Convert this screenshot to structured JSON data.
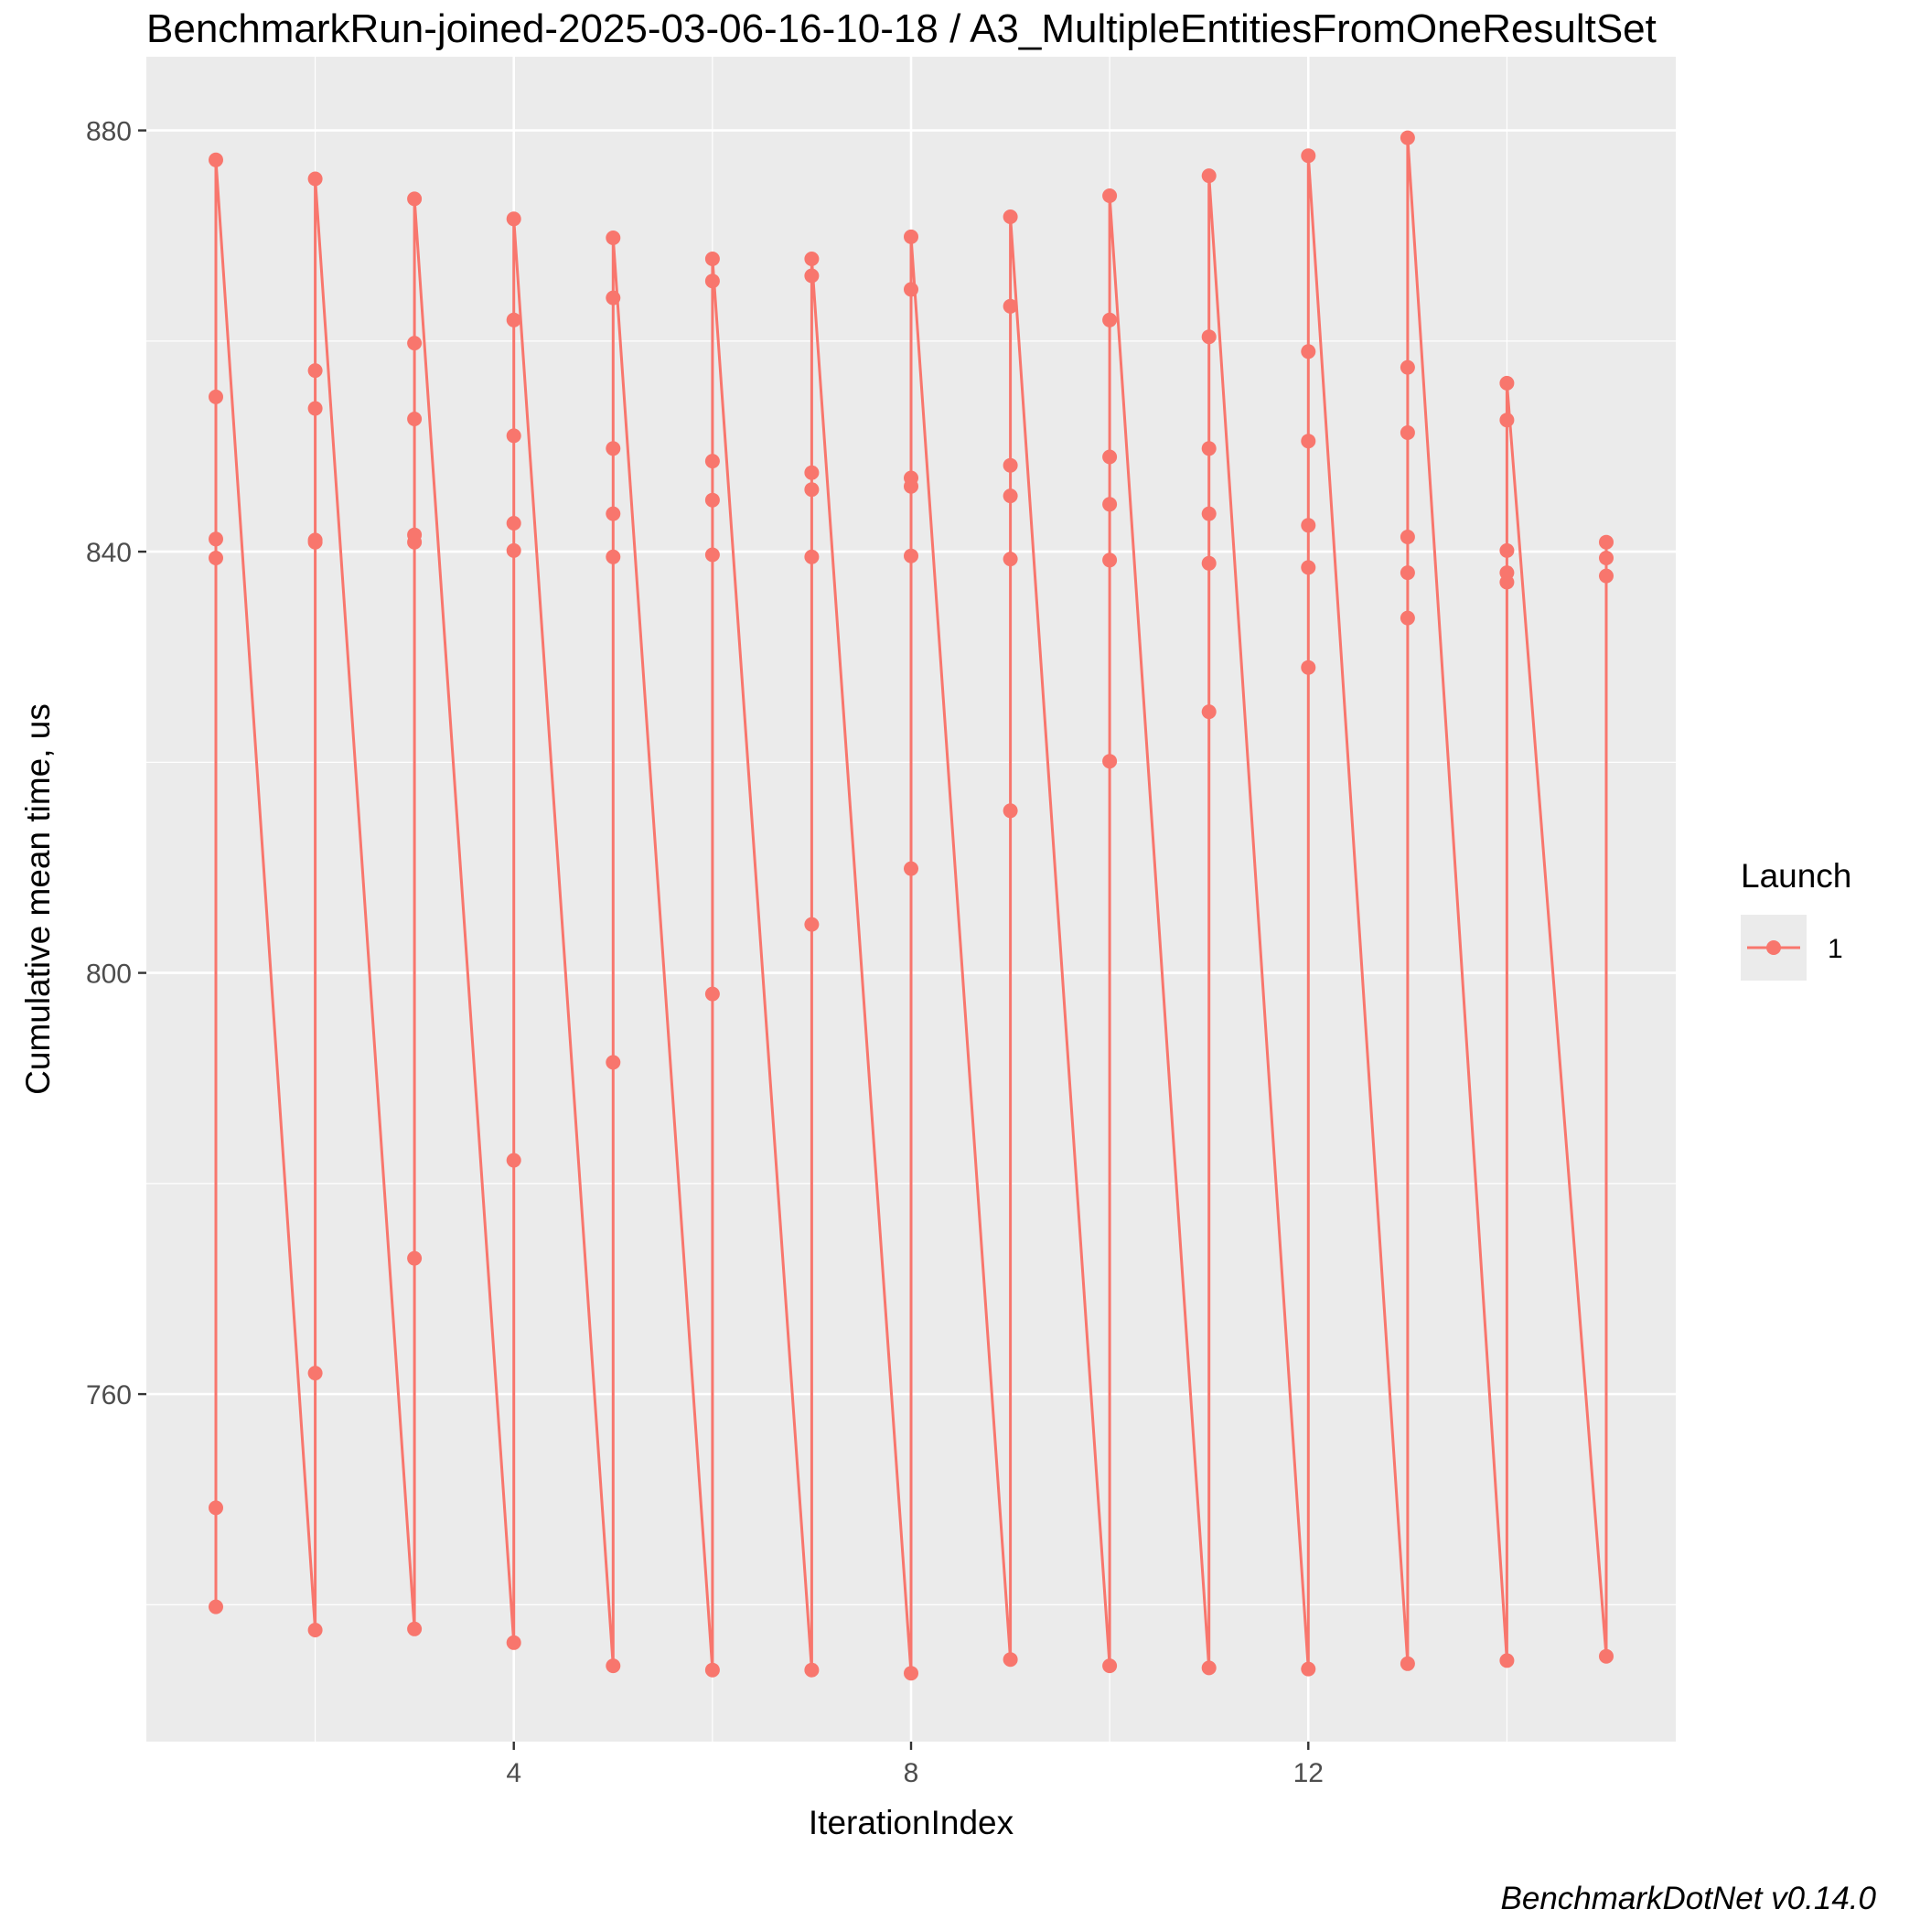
{
  "chart_data": {
    "type": "line",
    "title": "BenchmarkRun-joined-2025-03-06-16-10-18 / A3_MultipleEntitiesFromOneResultSet",
    "xlabel": "IterationIndex",
    "ylabel": "Cumulative mean time, us",
    "caption": "BenchmarkDotNet v0.14.0",
    "xlim": [
      0.3,
      15.7
    ],
    "ylim": [
      727,
      887
    ],
    "x_ticks": [
      4,
      8,
      12
    ],
    "x_tick_labels": [
      "4",
      "8",
      "12"
    ],
    "y_ticks": [
      760,
      800,
      840,
      880
    ],
    "y_tick_labels": [
      "760",
      "800",
      "840",
      "880"
    ],
    "grid": true,
    "legend": {
      "title": "Launch",
      "position": "right",
      "entries": [
        "1"
      ]
    },
    "series_color": "#F8766D",
    "series": [
      {
        "name": "1",
        "points": [
          [
            1,
            739.8
          ],
          [
            1,
            749.2
          ],
          [
            1,
            839.4
          ],
          [
            1,
            841.2
          ],
          [
            1,
            854.7
          ],
          [
            1,
            877.2
          ],
          [
            2,
            737.6
          ],
          [
            2,
            762.0
          ],
          [
            2,
            840.9
          ],
          [
            2,
            841.1
          ],
          [
            2,
            853.6
          ],
          [
            2,
            857.2
          ],
          [
            2,
            875.4
          ],
          [
            3,
            737.7
          ],
          [
            3,
            772.9
          ],
          [
            3,
            840.9
          ],
          [
            3,
            841.6
          ],
          [
            3,
            852.6
          ],
          [
            3,
            859.8
          ],
          [
            3,
            873.5
          ],
          [
            4,
            736.4
          ],
          [
            4,
            782.2
          ],
          [
            4,
            840.1
          ],
          [
            4,
            842.7
          ],
          [
            4,
            851.0
          ],
          [
            4,
            862.0
          ],
          [
            4,
            871.6
          ],
          [
            5,
            734.2
          ],
          [
            5,
            791.5
          ],
          [
            5,
            839.5
          ],
          [
            5,
            843.6
          ],
          [
            5,
            849.8
          ],
          [
            5,
            864.1
          ],
          [
            5,
            869.8
          ],
          [
            6,
            733.8
          ],
          [
            6,
            798.0
          ],
          [
            6,
            839.7
          ],
          [
            6,
            844.9
          ],
          [
            6,
            848.6
          ],
          [
            6,
            865.7
          ],
          [
            6,
            867.8
          ],
          [
            7,
            733.8
          ],
          [
            7,
            804.6
          ],
          [
            7,
            839.5
          ],
          [
            7,
            845.9
          ],
          [
            7,
            847.5
          ],
          [
            7,
            866.2
          ],
          [
            7,
            867.8
          ],
          [
            8,
            733.5
          ],
          [
            8,
            809.9
          ],
          [
            8,
            839.6
          ],
          [
            8,
            846.2
          ],
          [
            8,
            847.0
          ],
          [
            8,
            864.9
          ],
          [
            8,
            869.9
          ]
        ]
      }
    ],
    "points_continued": [
      [
        9,
        734.8
      ],
      [
        9,
        815.4
      ],
      [
        9,
        839.3
      ],
      [
        9,
        845.3
      ],
      [
        9,
        848.2
      ],
      [
        9,
        863.3
      ],
      [
        9,
        871.8
      ],
      [
        10,
        734.2
      ],
      [
        10,
        820.1
      ],
      [
        10,
        839.2
      ],
      [
        10,
        844.5
      ],
      [
        10,
        849.0
      ],
      [
        10,
        862.0
      ],
      [
        10,
        873.8
      ],
      [
        11,
        734.0
      ],
      [
        11,
        824.8
      ],
      [
        11,
        838.9
      ],
      [
        11,
        843.6
      ],
      [
        11,
        849.8
      ],
      [
        11,
        860.4
      ],
      [
        11,
        875.7
      ],
      [
        12,
        733.9
      ],
      [
        12,
        829.0
      ],
      [
        12,
        838.5
      ],
      [
        12,
        842.5
      ],
      [
        12,
        850.5
      ],
      [
        12,
        859.0
      ],
      [
        12,
        877.6
      ],
      [
        13,
        734.4
      ],
      [
        13,
        833.7
      ],
      [
        13,
        838.0
      ],
      [
        13,
        841.4
      ],
      [
        13,
        851.3
      ],
      [
        13,
        857.5
      ],
      [
        13,
        879.3
      ],
      [
        14,
        734.7
      ],
      [
        14,
        837.1
      ],
      [
        14,
        838.0
      ],
      [
        14,
        840.1
      ],
      [
        14,
        852.5
      ],
      [
        14,
        856.0
      ],
      [
        15,
        735.1
      ],
      [
        15,
        837.7
      ],
      [
        15,
        839.4
      ],
      [
        15,
        840.9
      ]
    ]
  }
}
